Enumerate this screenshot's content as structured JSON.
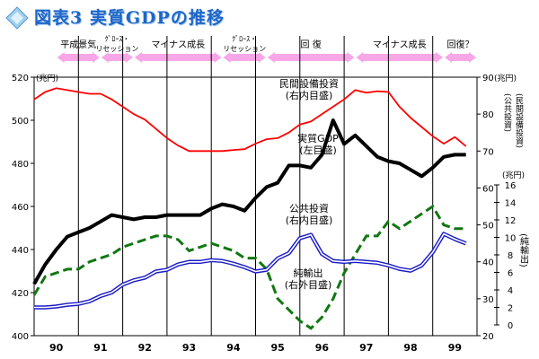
{
  "title": "図表3 実質GDPの推移",
  "colors": {
    "gdp": "#000000",
    "private_investment": "#ff0000",
    "public_investment": "#117711",
    "net_exports": "#1c1cc8",
    "phase_arrow": "#f7a6e7",
    "title": "#1d66c8"
  },
  "chart_data": {
    "type": "line",
    "x_ticks": [
      "90",
      "91",
      "92",
      "93",
      "94",
      "95",
      "96",
      "97",
      "98",
      "99"
    ],
    "phases": [
      {
        "label": "平成景気",
        "from": 1990.0,
        "to": 1991.0
      },
      {
        "label": "ｸﾞﾛｰｽ・リセッション",
        "from": 1991.0,
        "to": 1991.75
      },
      {
        "label": "マイナス成長",
        "from": 1991.75,
        "to": 1993.75
      },
      {
        "label": "ｸﾞﾛｰｽ・リセッション",
        "from": 1993.75,
        "to": 1994.75
      },
      {
        "label": "回 復",
        "from": 1994.75,
        "to": 1996.75
      },
      {
        "label": "マイナス成長",
        "from": 1996.75,
        "to": 1998.75
      },
      {
        "label": "回復？",
        "from": 1998.75,
        "to": 1999.5
      }
    ],
    "axes": {
      "left_main": {
        "ylim": [
          400,
          520
        ],
        "ticks": [
          400,
          420,
          440,
          460,
          480,
          500,
          520
        ],
        "unit": "(兆円)"
      },
      "right_main": {
        "ylim": [
          20,
          90
        ],
        "ticks": [
          20,
          30,
          40,
          50,
          60,
          70,
          80,
          90
        ],
        "unit": "(兆円)",
        "label": "(公共投資)(民間設備投資)"
      },
      "right_net": {
        "ylim": [
          0,
          16
        ],
        "ticks": [
          0,
          2,
          4,
          6,
          8,
          10,
          12,
          14,
          16
        ],
        "unit": "(兆円)",
        "label": "(純輸出)"
      }
    },
    "series": [
      {
        "key": "private_investment",
        "name": "民間設備投資",
        "note": "(右内目盛)",
        "axis": "right_main",
        "x": [
          1989.5,
          1989.75,
          1990.0,
          1990.25,
          1990.5,
          1990.75,
          1991.0,
          1991.25,
          1991.5,
          1991.75,
          1992.0,
          1992.25,
          1992.5,
          1992.75,
          1993.0,
          1993.25,
          1993.5,
          1993.75,
          1994.0,
          1994.25,
          1994.5,
          1994.75,
          1995.0,
          1995.25,
          1995.5,
          1995.75,
          1996.0,
          1996.25,
          1996.5,
          1996.75,
          1997.0,
          1997.25,
          1997.5,
          1997.75,
          1998.0,
          1998.25,
          1998.5,
          1998.75,
          1999.0,
          1999.25
        ],
        "values": [
          84,
          86,
          87,
          86.5,
          86,
          85.5,
          85.5,
          84,
          82,
          80,
          78.5,
          76,
          73.5,
          71.5,
          70,
          70,
          70,
          70,
          70.3,
          70.5,
          72,
          73.2,
          73.5,
          75,
          77.2,
          78,
          80,
          82,
          84,
          86.5,
          85.8,
          86.2,
          86,
          82,
          79,
          76.5,
          74,
          72,
          73.8,
          71.3
        ]
      },
      {
        "key": "gdp",
        "name": "実質GDP",
        "note": "(左目盛)",
        "axis": "left_main",
        "x": [
          1989.5,
          1989.75,
          1990.0,
          1990.25,
          1990.5,
          1990.75,
          1991.0,
          1991.25,
          1991.5,
          1991.75,
          1992.0,
          1992.25,
          1992.5,
          1992.75,
          1993.0,
          1993.25,
          1993.5,
          1993.75,
          1994.0,
          1994.25,
          1994.5,
          1994.75,
          1995.0,
          1995.25,
          1995.5,
          1995.75,
          1996.0,
          1996.25,
          1996.5,
          1996.75,
          1997.0,
          1997.25,
          1997.5,
          1997.75,
          1998.0,
          1998.25,
          1998.5,
          1998.75,
          1999.0,
          1999.25
        ],
        "values": [
          424,
          433,
          440,
          446,
          448,
          450,
          453,
          456,
          455,
          454,
          455,
          455,
          456,
          456,
          456,
          456,
          459,
          461,
          460,
          458,
          464,
          469,
          471,
          479,
          479,
          478,
          484,
          500,
          489,
          493,
          488,
          483,
          481,
          480,
          477,
          474,
          478,
          483,
          484,
          484
        ]
      },
      {
        "key": "public_investment",
        "name": "公共投資",
        "note": "(右内目盛)",
        "axis": "right_main",
        "x": [
          1989.5,
          1989.75,
          1990.0,
          1990.25,
          1990.5,
          1990.75,
          1991.0,
          1991.25,
          1991.5,
          1991.75,
          1992.0,
          1992.25,
          1992.5,
          1992.75,
          1993.0,
          1993.25,
          1993.5,
          1993.75,
          1994.0,
          1994.25,
          1994.5,
          1994.75,
          1995.0,
          1995.25,
          1995.5,
          1995.75,
          1996.0,
          1996.25,
          1996.5,
          1996.75,
          1997.0,
          1997.25,
          1997.5,
          1997.75,
          1998.0,
          1998.25,
          1998.5,
          1998.75,
          1999.0,
          1999.25
        ],
        "values": [
          31,
          36,
          37,
          38,
          38,
          40,
          41,
          42,
          44,
          45,
          46,
          47,
          47,
          46,
          43,
          44,
          45,
          44,
          43,
          41,
          41,
          38,
          30,
          27,
          24,
          22,
          25,
          30,
          37,
          42,
          47,
          47,
          51,
          49,
          51,
          53,
          55,
          50,
          49,
          49
        ]
      },
      {
        "key": "net_exports",
        "name": "純輸出",
        "note": "(右外目盛)",
        "axis": "right_net",
        "x": [
          1989.5,
          1989.75,
          1990.0,
          1990.25,
          1990.5,
          1990.75,
          1991.0,
          1991.25,
          1991.5,
          1991.75,
          1992.0,
          1992.25,
          1992.5,
          1992.75,
          1993.0,
          1993.25,
          1993.5,
          1993.75,
          1994.0,
          1994.25,
          1994.5,
          1994.75,
          1995.0,
          1995.25,
          1995.5,
          1995.75,
          1996.0,
          1996.25,
          1996.5,
          1996.75,
          1997.0,
          1997.25,
          1997.5,
          1997.75,
          1998.0,
          1998.25,
          1998.5,
          1998.75,
          1999.0,
          1999.25
        ],
        "values": [
          2.0,
          2.0,
          2.1,
          2.3,
          2.4,
          2.7,
          3.3,
          3.7,
          4.6,
          5.1,
          5.4,
          6.1,
          6.3,
          6.9,
          7.2,
          7.2,
          7.4,
          7.3,
          7.0,
          6.6,
          6.1,
          6.3,
          7.6,
          8.2,
          9.9,
          10.3,
          8.1,
          7.3,
          7.2,
          7.3,
          7.2,
          7.1,
          6.8,
          6.4,
          6.2,
          6.8,
          8.3,
          10.4,
          9.8,
          9.3
        ]
      }
    ]
  }
}
